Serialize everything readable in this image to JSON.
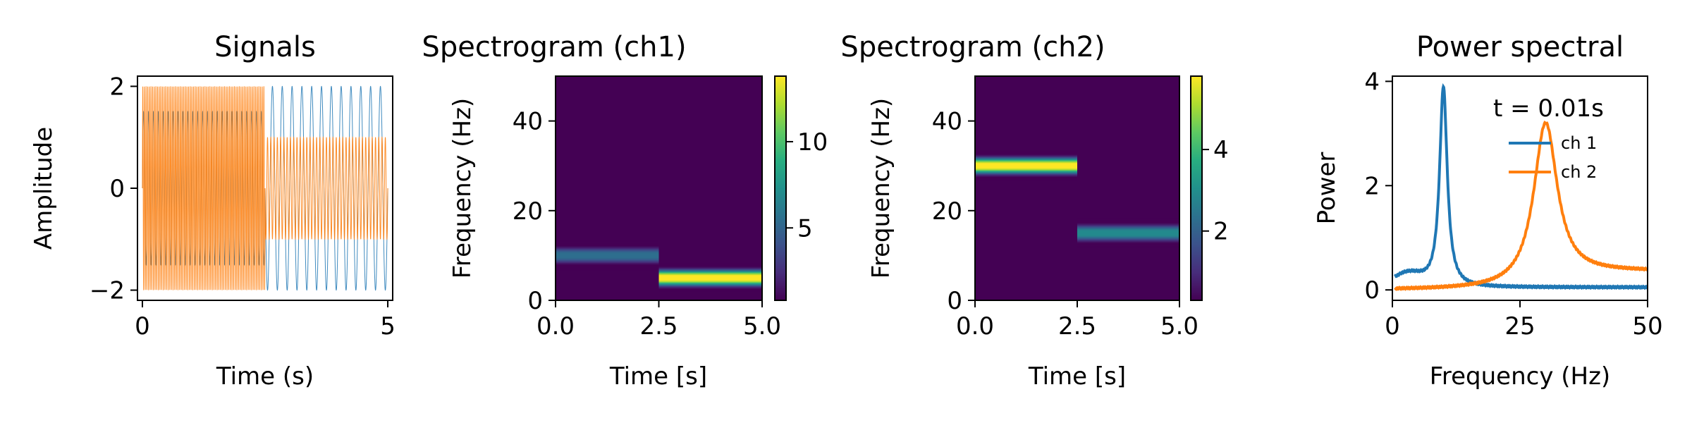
{
  "chart_data": [
    {
      "type": "line",
      "title": "Signals",
      "xlabel": "Time (s)",
      "ylabel": "Amplitude",
      "xlim": [
        -0.1,
        5.1
      ],
      "ylim": [
        -2.2,
        2.2
      ],
      "xticks": [
        0,
        5
      ],
      "yticks": [
        -2,
        0,
        2
      ],
      "xtick_labels": [
        "0",
        "5"
      ],
      "ytick_labels": [
        "−2",
        "0",
        "2"
      ],
      "series": [
        {
          "color": "#1f77b4",
          "segments": [
            {
              "t0": 0,
              "t1": 2.5,
              "freq_hz": 10,
              "amplitude": 1.5
            },
            {
              "t0": 2.5,
              "t1": 5,
              "freq_hz": 5,
              "amplitude": 2.0
            }
          ]
        },
        {
          "color": "#ff7f0e",
          "segments": [
            {
              "t0": 0,
              "t1": 2.5,
              "freq_hz": 30,
              "amplitude": 2.0
            },
            {
              "t0": 2.5,
              "t1": 5,
              "freq_hz": 15,
              "amplitude": 1.0
            }
          ]
        }
      ]
    },
    {
      "type": "heatmap",
      "title": "Spectrogram (ch1)",
      "xlabel": "Time [s]",
      "ylabel": "Frequency (Hz)",
      "xlim": [
        0,
        5
      ],
      "ylim": [
        0,
        50
      ],
      "xticks": [
        0,
        2.5,
        5
      ],
      "yticks": [
        0,
        20,
        40
      ],
      "xtick_labels": [
        "0.0",
        "2.5",
        "5.0"
      ],
      "ytick_labels": [
        "0",
        "20",
        "40"
      ],
      "colormap": "viridis",
      "color_range": [
        0.8,
        13.8
      ],
      "colorbar_ticks": [
        5,
        10
      ],
      "colorbar_tick_labels": [
        "5",
        "10"
      ],
      "bands": [
        {
          "t0": 0,
          "t1": 2.5,
          "freq_hz": 10,
          "peak": 5.5
        },
        {
          "t0": 2.5,
          "t1": 5,
          "freq_hz": 5,
          "peak": 13.8
        }
      ]
    },
    {
      "type": "heatmap",
      "title": "Spectrogram (ch2)",
      "xlabel": "Time [s]",
      "ylabel": "Frequency (Hz)",
      "xlim": [
        0,
        5
      ],
      "ylim": [
        0,
        50
      ],
      "xticks": [
        0,
        2.5,
        5
      ],
      "yticks": [
        0,
        20,
        40
      ],
      "xtick_labels": [
        "0.0",
        "2.5",
        "5.0"
      ],
      "ytick_labels": [
        "0",
        "20",
        "40"
      ],
      "colormap": "viridis",
      "color_range": [
        0.3,
        5.8
      ],
      "colorbar_ticks": [
        2,
        4
      ],
      "colorbar_tick_labels": [
        "2",
        "4"
      ],
      "bands": [
        {
          "t0": 0,
          "t1": 2.5,
          "freq_hz": 30,
          "peak": 5.8
        },
        {
          "t0": 2.5,
          "t1": 5,
          "freq_hz": 15,
          "peak": 2.9
        }
      ]
    },
    {
      "type": "line",
      "title": "Power spectral",
      "xlabel": "Frequency (Hz)",
      "ylabel": "Power",
      "xlim": [
        0,
        50
      ],
      "ylim": [
        -0.2,
        4.1
      ],
      "xticks": [
        0,
        25,
        50
      ],
      "yticks": [
        0,
        2,
        4
      ],
      "xtick_labels": [
        "0",
        "25",
        "50"
      ],
      "ytick_labels": [
        "0",
        "2",
        "4"
      ],
      "annotation": "t = 0.01s",
      "legend": {
        "placement": "top-right",
        "entries": [
          "ch 1",
          "ch 2"
        ]
      },
      "series": [
        {
          "name": "ch 1",
          "color": "#1f77b4",
          "peak_hz": 10,
          "peak_value": 3.9,
          "width_hz": 0.9,
          "floor": 0.05,
          "x": [
            1,
            2,
            5,
            8,
            9,
            10,
            11,
            12,
            15,
            20,
            30,
            40,
            50
          ],
          "y": [
            0.1,
            0.25,
            0.35,
            0.9,
            2.0,
            3.9,
            2.0,
            1.0,
            0.45,
            0.22,
            0.1,
            0.07,
            0.05
          ]
        },
        {
          "name": "ch 2",
          "color": "#ff7f0e",
          "peak_hz": 30,
          "peak_value": 3.2,
          "width_hz": 2.8,
          "floor": 0.0,
          "x": [
            1,
            5,
            10,
            15,
            20,
            25,
            28,
            30,
            32,
            35,
            40,
            45,
            50
          ],
          "y": [
            0.0,
            0.05,
            0.1,
            0.2,
            0.4,
            1.2,
            2.6,
            3.2,
            2.6,
            1.4,
            0.75,
            0.5,
            0.4
          ]
        }
      ]
    }
  ]
}
